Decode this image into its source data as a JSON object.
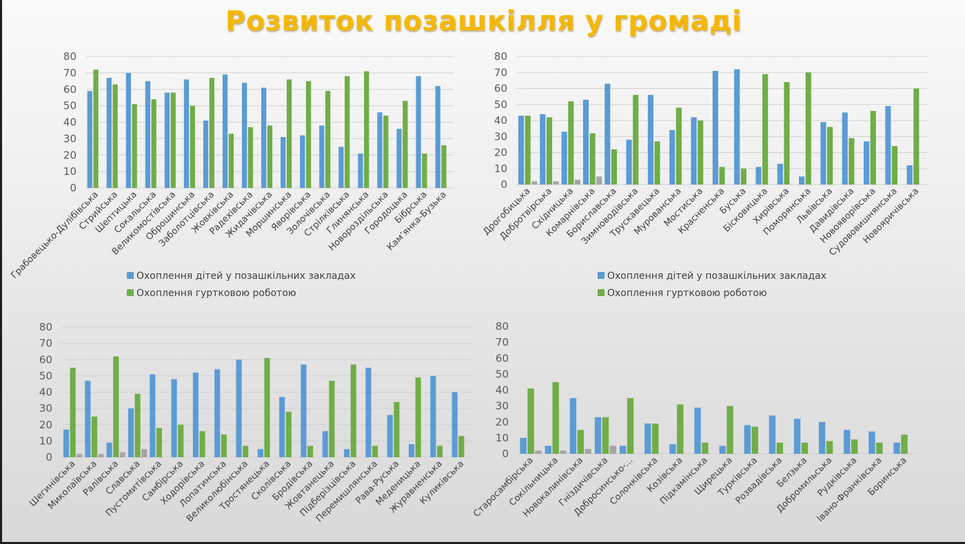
{
  "slide": {
    "title": "Розвиток позашкілля у громаді"
  },
  "colors": {
    "title": "#f5b800",
    "series_children": "#5b9bd5",
    "series_clubs": "#70ad47",
    "series_third": "#a5a5a5",
    "grid": "#d0d0d0"
  },
  "chart_data": [
    {
      "type": "bar",
      "title": "",
      "xlabel": "",
      "ylabel": "",
      "ylim": [
        0,
        80
      ],
      "yticks": [
        "0",
        "10",
        "20",
        "30",
        "40",
        "50",
        "60",
        "70",
        "80"
      ],
      "grid": true,
      "legend": {
        "position": "bottom",
        "entries": [
          "Охоплення дітей у позашкільних закладах",
          "Охоплення гуртковою роботою"
        ]
      },
      "categories": [
        "Грабовецько-Дулібівська",
        "Стрийська",
        "Шептицька",
        "Сокальська",
        "Великомостівська",
        "Оброшинська",
        "Заболотцівська",
        "Жовківська",
        "Радехівська",
        "Жидачівська",
        "Моршинська",
        "Яворівська",
        "Золочівська",
        "Стрілківська",
        "Глинянська",
        "Новороздільська",
        "Городоцька",
        "Бібрська",
        "Кам’янка-Бузька"
      ],
      "series": [
        {
          "name": "Охоплення дітей у позашкільних закладах",
          "values": [
            59,
            67,
            70,
            65,
            58,
            66,
            41,
            69,
            64,
            61,
            31,
            32,
            38,
            25,
            21,
            46,
            36,
            68,
            62
          ]
        },
        {
          "name": "Охоплення гуртковою роботою",
          "values": [
            72,
            63,
            51,
            54,
            58,
            50,
            67,
            33,
            37,
            38,
            66,
            65,
            59,
            68,
            71,
            44,
            53,
            21,
            26
          ]
        },
        {
          "name": "",
          "values": [
            0,
            0,
            0,
            0,
            0,
            0,
            0,
            0,
            0,
            0,
            0,
            0,
            0,
            0,
            0,
            0,
            0,
            0,
            0
          ]
        }
      ]
    },
    {
      "type": "bar",
      "title": "",
      "xlabel": "",
      "ylabel": "",
      "ylim": [
        0,
        80
      ],
      "yticks": [
        "0",
        "10",
        "20",
        "30",
        "40",
        "50",
        "60",
        "70",
        "80"
      ],
      "grid": true,
      "legend": {
        "position": "bottom",
        "entries": [
          "Охоплення дітей у позашкільних закладах",
          "Охоплення гуртковою роботою"
        ]
      },
      "categories": [
        "Дрогобицька",
        "Добротвірська",
        "Східницька",
        "Комарнівська",
        "Бориславська",
        "Зимноводівська",
        "Трускавецька",
        "Мурованська",
        "Мостиська",
        "Красненська",
        "Буська",
        "Бісковицька",
        "Хирівська",
        "Поморянська",
        "Львівська",
        "Давидівська",
        "Новояворівська",
        "Судововишнянська",
        "Новояричівська"
      ],
      "series": [
        {
          "name": "Охоплення дітей у позашкільних закладах",
          "values": [
            43,
            44,
            33,
            53,
            63,
            28,
            56,
            34,
            42,
            71,
            72,
            11,
            13,
            5,
            39,
            45,
            27,
            49,
            12
          ]
        },
        {
          "name": "Охоплення гуртковою роботою",
          "values": [
            43,
            42,
            52,
            32,
            22,
            56,
            27,
            48,
            40,
            11,
            10,
            69,
            64,
            70,
            36,
            29,
            46,
            24,
            60
          ]
        },
        {
          "name": "",
          "values": [
            2,
            2,
            3,
            5,
            0,
            0,
            0,
            0,
            0,
            0,
            0,
            0,
            0,
            0,
            0,
            0,
            0,
            0,
            0
          ]
        }
      ]
    },
    {
      "type": "bar",
      "title": "",
      "xlabel": "",
      "ylabel": "",
      "ylim": [
        0,
        80
      ],
      "yticks": [
        "0",
        "10",
        "20",
        "30",
        "40",
        "50",
        "60",
        "70",
        "80"
      ],
      "grid": true,
      "legend": null,
      "categories": [
        "Шегинівська",
        "Миколаївська",
        "Ралівська",
        "Славська",
        "Пустомитівська",
        "Самбірська",
        "Ходорівська",
        "Лопатинська",
        "Великолюбінська",
        "Тростянецька",
        "Сколівська",
        "Бродівська",
        "Жовтанецька",
        "Підберізцівська",
        "Перемишлянська",
        "Рава-Руська",
        "Меденицька",
        "Журавненська",
        "Куликівська"
      ],
      "series": [
        {
          "name": "Охоплення дітей у позашкільних закладах",
          "values": [
            17,
            47,
            9,
            30,
            51,
            48,
            52,
            54,
            60,
            5,
            37,
            57,
            16,
            5,
            55,
            26,
            8,
            50,
            40
          ]
        },
        {
          "name": "Охоплення гуртковою роботою",
          "values": [
            55,
            25,
            62,
            39,
            18,
            20,
            16,
            14,
            7,
            61,
            28,
            7,
            47,
            57,
            7,
            34,
            49,
            7,
            13
          ]
        },
        {
          "name": "",
          "values": [
            2,
            2,
            3,
            5,
            0,
            0,
            0,
            0,
            0,
            0,
            0,
            0,
            0,
            0,
            0,
            0,
            0,
            0,
            0
          ]
        }
      ]
    },
    {
      "type": "bar",
      "title": "",
      "xlabel": "",
      "ylabel": "",
      "ylim": [
        0,
        80
      ],
      "yticks": [
        "0",
        "10",
        "20",
        "30",
        "40",
        "50",
        "60",
        "70",
        "80"
      ],
      "grid": false,
      "legend": null,
      "categories": [
        "Старосамбірська",
        "Сокільницька",
        "Новокалинівська",
        "Гніздичівська",
        "Добросинсько-...",
        "Солонківська",
        "Козівська",
        "Підкамінська",
        "Щирецька",
        "Турківська",
        "Розвадівська",
        "Белзька",
        "Добромильська",
        "Рудківська",
        "Івано-Франківська",
        "Боринська"
      ],
      "series": [
        {
          "name": "Охоплення дітей у позашкільних закладах",
          "values": [
            10,
            5,
            35,
            23,
            5,
            19,
            6,
            29,
            5,
            18,
            24,
            22,
            20,
            15,
            14,
            7
          ]
        },
        {
          "name": "Охоплення гуртковою роботою",
          "values": [
            41,
            45,
            15,
            23,
            35,
            19,
            31,
            7,
            30,
            17,
            7,
            7,
            8,
            9,
            7,
            12
          ]
        },
        {
          "name": "",
          "values": [
            2,
            2,
            3,
            5,
            0,
            0,
            0,
            0,
            0,
            0,
            0,
            0,
            0,
            0,
            0,
            0
          ]
        }
      ]
    }
  ]
}
